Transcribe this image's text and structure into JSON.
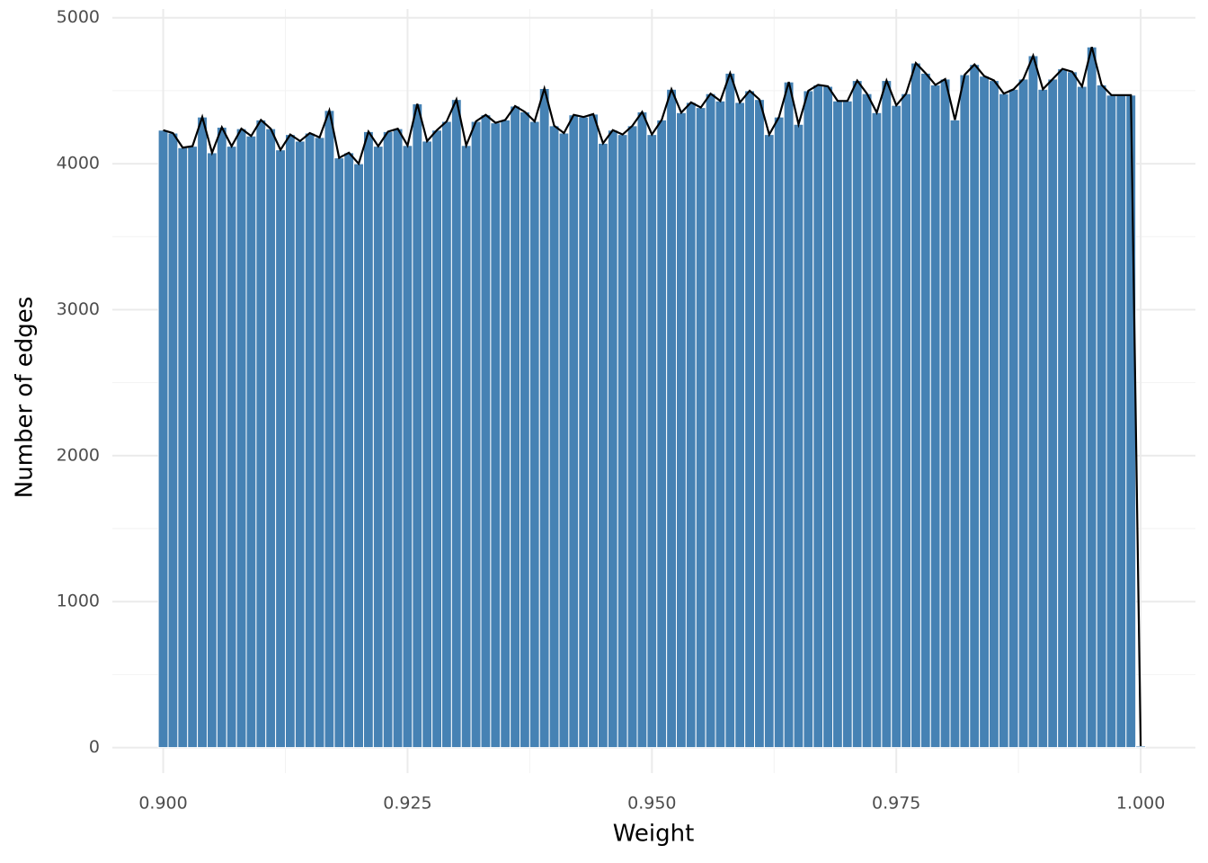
{
  "chart_data": {
    "type": "histogram",
    "x_label": "Weight",
    "y_label": "Number of edges",
    "color": "#4682b4",
    "line_color": "#000000",
    "grid": true,
    "xlim": [
      0.8948,
      1.0056
    ],
    "ylim": [
      -175,
      5060
    ],
    "xticks": [
      {
        "value": 0.9,
        "label": "0.900"
      },
      {
        "value": 0.925,
        "label": "0.925"
      },
      {
        "value": 0.95,
        "label": "0.950"
      },
      {
        "value": 0.975,
        "label": "0.975"
      },
      {
        "value": 1.0,
        "label": "1.000"
      }
    ],
    "yticks": [
      0,
      1000,
      2000,
      3000,
      4000,
      5000
    ],
    "bins": [
      0.8995,
      0.9005,
      0.9015,
      0.9025,
      0.9035,
      0.9045,
      0.9055,
      0.9065,
      0.9075,
      0.9085,
      0.9095,
      0.9105,
      0.9115,
      0.9125,
      0.9135,
      0.9145,
      0.9155,
      0.9165,
      0.9175,
      0.9185,
      0.9195,
      0.9205,
      0.9215,
      0.9225,
      0.9235,
      0.9245,
      0.9255,
      0.9265,
      0.9275,
      0.9285,
      0.9295,
      0.9305,
      0.9315,
      0.9325,
      0.9335,
      0.9345,
      0.9355,
      0.9365,
      0.9375,
      0.9385,
      0.9395,
      0.9405,
      0.9415,
      0.9425,
      0.9435,
      0.9445,
      0.9455,
      0.9465,
      0.9475,
      0.9485,
      0.9495,
      0.9505,
      0.9515,
      0.9525,
      0.9535,
      0.9545,
      0.9555,
      0.9565,
      0.9575,
      0.9585,
      0.9595,
      0.9605,
      0.9615,
      0.9625,
      0.9635,
      0.9645,
      0.9655,
      0.9665,
      0.9675,
      0.9685,
      0.9695,
      0.9705,
      0.9715,
      0.9725,
      0.9735,
      0.9745,
      0.9755,
      0.9765,
      0.9775,
      0.9785,
      0.9795,
      0.9805,
      0.9815,
      0.9825,
      0.9835,
      0.9845,
      0.9855,
      0.9865,
      0.9875,
      0.9885,
      0.9895,
      0.9905,
      0.9915,
      0.9925,
      0.9935,
      0.9945,
      0.9955,
      0.9965,
      0.9975,
      0.9985,
      0.9995,
      1.0005
    ],
    "values": [
      4230,
      4210,
      4110,
      4120,
      4320,
      4075,
      4250,
      4120,
      4240,
      4190,
      4300,
      4240,
      4095,
      4200,
      4155,
      4210,
      4180,
      4365,
      4040,
      4075,
      4000,
      4220,
      4120,
      4220,
      4240,
      4125,
      4410,
      4155,
      4230,
      4290,
      4440,
      4125,
      4290,
      4335,
      4280,
      4300,
      4395,
      4355,
      4290,
      4515,
      4260,
      4210,
      4335,
      4320,
      4340,
      4140,
      4230,
      4200,
      4260,
      4355,
      4200,
      4300,
      4510,
      4350,
      4420,
      4385,
      4480,
      4430,
      4620,
      4420,
      4500,
      4440,
      4200,
      4320,
      4560,
      4270,
      4500,
      4540,
      4530,
      4430,
      4430,
      4570,
      4480,
      4350,
      4570,
      4400,
      4480,
      4690,
      4620,
      4540,
      4580,
      4300,
      4610,
      4680,
      4600,
      4570,
      4480,
      4510,
      4580,
      4740,
      4510,
      4580,
      4650,
      4630,
      4530,
      4800,
      4540,
      4470,
      4470,
      4470,
      10
    ]
  }
}
